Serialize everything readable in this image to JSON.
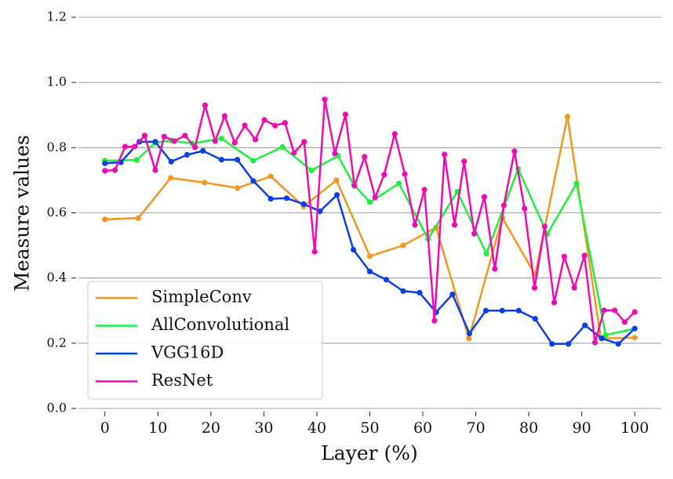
{
  "chart_data": {
    "type": "line",
    "x_label": "Layer (%)",
    "y_label": "Measure values",
    "xlim": [
      -5,
      105
    ],
    "xticks": [
      0,
      10,
      20,
      30,
      40,
      50,
      60,
      70,
      80,
      90,
      100
    ],
    "ylim": [
      0,
      1.2
    ],
    "yticks": [
      {
        "value": 0,
        "label": "0.0"
      },
      0.2,
      0.4,
      0.6,
      0.8,
      {
        "value": 1,
        "label": "1.0"
      },
      1.2
    ],
    "grid": true,
    "legend": "lower left",
    "series": [
      {
        "name": "SimpleConv",
        "color": "#f5961e",
        "x": [
          0,
          6.3,
          12.4,
          18.8,
          25,
          31.3,
          37.5,
          43.7,
          50,
          56.3,
          62.5,
          68.7,
          75,
          81.2,
          87.3,
          93.6,
          100
        ],
        "values": [
          0.58,
          0.584,
          0.707,
          0.693,
          0.676,
          0.712,
          0.62,
          0.7,
          0.467,
          0.5,
          0.555,
          0.215,
          0.585,
          0.41,
          0.895,
          0.215,
          0.217
        ]
      },
      {
        "name": "AllConvolutional",
        "color": "#1ef03c",
        "x": [
          0,
          6,
          9.5,
          12.5,
          16.5,
          22,
          28,
          33.5,
          39,
          44,
          47,
          50,
          55.5,
          61,
          66.5,
          72,
          78,
          83.5,
          89,
          94.5,
          100
        ],
        "values": [
          0.76,
          0.762,
          0.815,
          0.822,
          0.813,
          0.828,
          0.76,
          0.802,
          0.73,
          0.775,
          0.685,
          0.633,
          0.69,
          0.52,
          0.665,
          0.475,
          0.735,
          0.535,
          0.69,
          0.225,
          0.245
        ]
      },
      {
        "name": "VGG16D",
        "color": "#0a3ee6",
        "x": [
          0,
          3,
          6.5,
          9.5,
          12.5,
          15.5,
          18.5,
          22,
          25,
          28,
          31.3,
          34.3,
          37.5,
          40.6,
          43.8,
          46.9,
          50,
          53.1,
          56.3,
          59.4,
          62.5,
          65.6,
          68.8,
          71.9,
          75,
          78.1,
          81.2,
          84.4,
          87.5,
          90.6,
          93.8,
          96.9,
          100
        ],
        "values": [
          0.752,
          0.755,
          0.818,
          0.818,
          0.757,
          0.778,
          0.79,
          0.763,
          0.763,
          0.698,
          0.643,
          0.645,
          0.627,
          0.605,
          0.655,
          0.487,
          0.42,
          0.395,
          0.36,
          0.355,
          0.295,
          0.35,
          0.23,
          0.3,
          0.3,
          0.3,
          0.275,
          0.198,
          0.198,
          0.255,
          0.215,
          0.198,
          0.245
        ]
      },
      {
        "name": "ResNet",
        "color": "#f00ab4",
        "x": [
          0,
          1.9,
          3.8,
          5.6,
          7.5,
          9.5,
          11.2,
          13.1,
          15.1,
          17,
          18.9,
          20.8,
          22.6,
          24.5,
          26.4,
          28.4,
          30.1,
          32.1,
          34,
          35.7,
          37.6,
          39.6,
          41.5,
          43.4,
          45.4,
          47.1,
          49,
          51,
          52.7,
          54.7,
          56.6,
          58.5,
          60.3,
          62.2,
          64.1,
          66,
          67.8,
          69.7,
          71.6,
          73.6,
          75.3,
          77.3,
          79.2,
          81.1,
          83,
          84.8,
          86.7,
          88.6,
          90.5,
          92.5,
          94.2,
          96.2,
          98.1,
          100
        ],
        "values": [
          0.729,
          0.731,
          0.803,
          0.803,
          0.837,
          0.731,
          0.834,
          0.82,
          0.837,
          0.801,
          0.93,
          0.82,
          0.897,
          0.815,
          0.868,
          0.825,
          0.885,
          0.868,
          0.876,
          0.784,
          0.818,
          0.481,
          0.948,
          0.782,
          0.902,
          0.683,
          0.772,
          0.647,
          0.717,
          0.842,
          0.719,
          0.563,
          0.671,
          0.269,
          0.779,
          0.563,
          0.758,
          0.536,
          0.649,
          0.428,
          0.623,
          0.789,
          0.613,
          0.37,
          0.558,
          0.325,
          0.466,
          0.37,
          0.469,
          0.202,
          0.301,
          0.301,
          0.265,
          0.296
        ]
      }
    ]
  }
}
